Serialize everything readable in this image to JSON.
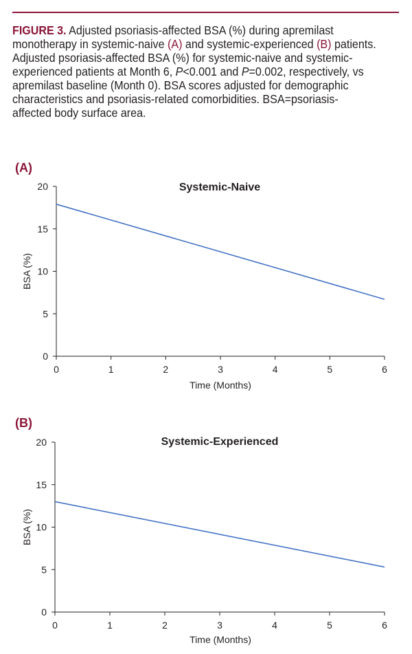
{
  "caption": {
    "figure_label": "FIGURE 3.",
    "line1_text": " Adjusted psoriasis-affected BSA (%) during apremilast monotherapy in systemic-naive ",
    "panel_a_ref": "(A)",
    "line1_mid": " and systemic-experienced ",
    "panel_b_ref": "(B)",
    "line1_end": " patients.",
    "p2_start": "Adjusted psoriasis-affected BSA (%) for systemic-naive and systemic-experienced patients at Month 6, ",
    "p2_p1": "P",
    "p2_mid": "<0.001 and ",
    "p2_p2": "P",
    "p2_end": "=0.002, respectively, vs apremilast baseline (Month 0). BSA scores adjusted for demographic characteristics and psoriasis-related comorbidities. BSA=psoriasis-affected body surface area."
  },
  "colors": {
    "accent": "#8a1538",
    "line": "#4472c4",
    "axis": "#231f20"
  },
  "chart_data": [
    {
      "type": "line",
      "panel_label": "(A)",
      "title": "Systemic-Naive",
      "xlabel": "Time (Months)",
      "ylabel": "BSA (%)",
      "xlim": [
        0,
        6
      ],
      "ylim": [
        0,
        20
      ],
      "xticks": [
        0,
        1,
        2,
        3,
        4,
        5,
        6
      ],
      "yticks": [
        0,
        5,
        10,
        15,
        20
      ],
      "grid": false,
      "series": [
        {
          "name": "Systemic-Naive",
          "x": [
            0,
            6
          ],
          "y": [
            17.9,
            6.7
          ]
        }
      ]
    },
    {
      "type": "line",
      "panel_label": "(B)",
      "title": "Systemic-Experienced",
      "xlabel": "Time (Months)",
      "ylabel": "BSA (%)",
      "xlim": [
        0,
        6
      ],
      "ylim": [
        0,
        20
      ],
      "xticks": [
        0,
        1,
        2,
        3,
        4,
        5,
        6
      ],
      "yticks": [
        0,
        5,
        10,
        15,
        20
      ],
      "grid": false,
      "series": [
        {
          "name": "Systemic-Experienced",
          "x": [
            0,
            6
          ],
          "y": [
            13.0,
            5.3
          ]
        }
      ]
    }
  ]
}
